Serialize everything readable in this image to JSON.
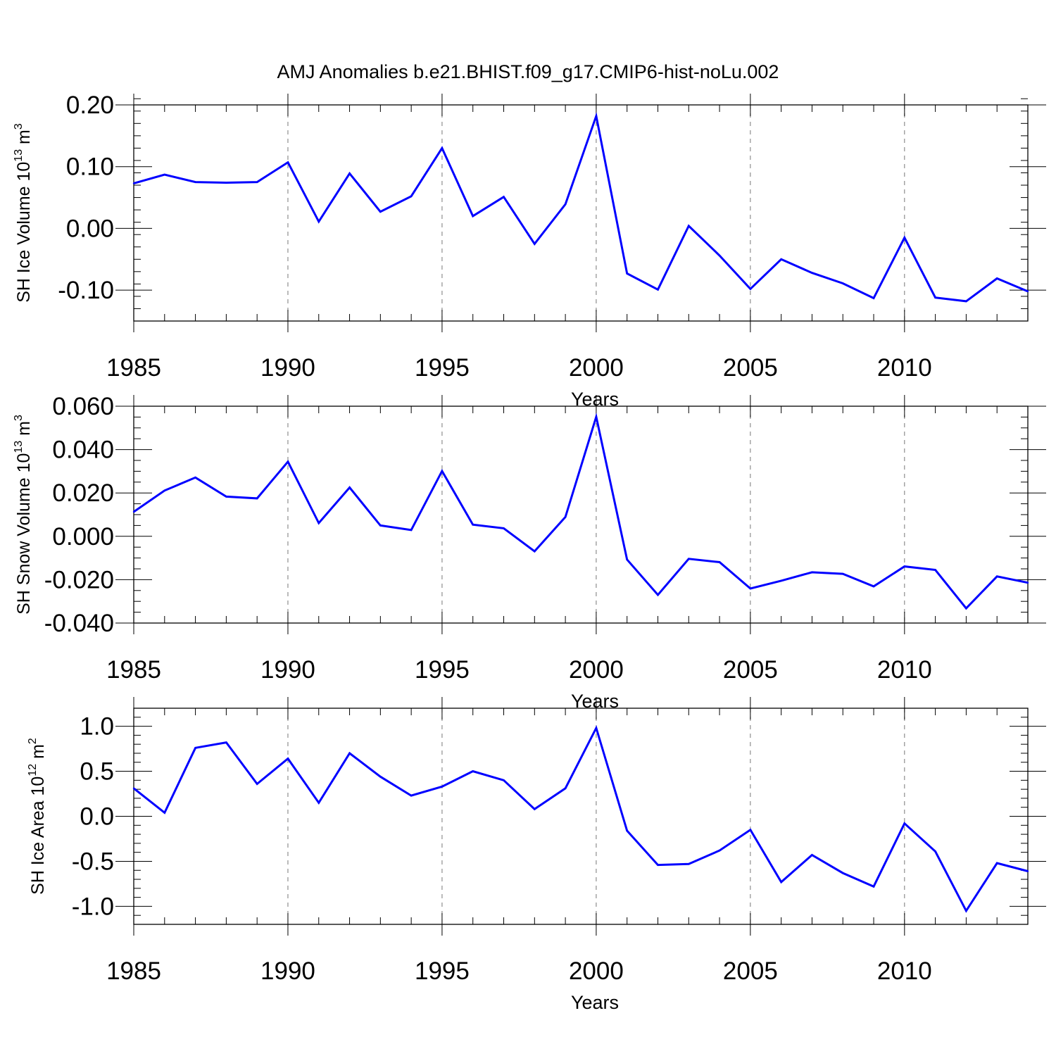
{
  "title": "AMJ Anomalies b.e21.BHIST.f09_g17.CMIP6-hist-noLu.002",
  "line_color": "#0000ff",
  "chart_data": [
    {
      "type": "line",
      "xlabel": "Years",
      "ylabel": {
        "main": "SH Ice Volume 10",
        "exp": "13",
        "unit": " m",
        "unit_exp": "3"
      },
      "xlim": [
        1985,
        2014
      ],
      "ylim": [
        -0.15,
        0.2
      ],
      "xticks": [
        1985,
        1990,
        1995,
        2000,
        2005,
        2010
      ],
      "xtick_labels": [
        "1985",
        "1990",
        "1995",
        "2000",
        "2005",
        "2010"
      ],
      "yticks": [
        0.2,
        0.1,
        0.0,
        -0.1
      ],
      "ytick_labels": [
        "0.20",
        "0.10",
        "0.00",
        "-0.10"
      ],
      "y_minor_step": 0.02,
      "x": [
        1985,
        1986,
        1987,
        1988,
        1989,
        1990,
        1991,
        1992,
        1993,
        1994,
        1995,
        1996,
        1997,
        1998,
        1999,
        2000,
        2001,
        2002,
        2003,
        2004,
        2005,
        2006,
        2007,
        2008,
        2009,
        2010,
        2011,
        2012,
        2013,
        2014
      ],
      "series": [
        {
          "values": [
            0.073,
            0.087,
            0.075,
            0.074,
            0.075,
            0.107,
            0.011,
            0.089,
            0.027,
            0.052,
            0.13,
            0.02,
            0.051,
            -0.025,
            0.039,
            0.182,
            -0.073,
            -0.099,
            0.004,
            -0.044,
            -0.098,
            -0.05,
            -0.072,
            -0.089,
            -0.113,
            -0.015,
            -0.112,
            -0.118,
            -0.081,
            -0.102
          ]
        }
      ]
    },
    {
      "type": "line",
      "xlabel": "Years",
      "ylabel": {
        "main": "SH Snow Volume 10",
        "exp": "13",
        "unit": " m",
        "unit_exp": "3"
      },
      "xlim": [
        1985,
        2014
      ],
      "ylim": [
        -0.04,
        0.06
      ],
      "xticks": [
        1985,
        1990,
        1995,
        2000,
        2005,
        2010
      ],
      "xtick_labels": [
        "1985",
        "1990",
        "1995",
        "2000",
        "2005",
        "2010"
      ],
      "yticks": [
        0.06,
        0.04,
        0.02,
        0.0,
        -0.02,
        -0.04
      ],
      "ytick_labels": [
        "0.060",
        "0.040",
        "0.020",
        "0.000",
        "-0.020",
        "-0.040"
      ],
      "y_minor_step": 0.005,
      "x": [
        1985,
        1986,
        1987,
        1988,
        1989,
        1990,
        1991,
        1992,
        1993,
        1994,
        1995,
        1996,
        1997,
        1998,
        1999,
        2000,
        2001,
        2002,
        2003,
        2004,
        2005,
        2006,
        2007,
        2008,
        2009,
        2010,
        2011,
        2012,
        2013,
        2014
      ],
      "series": [
        {
          "values": [
            0.0113,
            0.0211,
            0.0271,
            0.0183,
            0.0175,
            0.0344,
            0.0061,
            0.0225,
            0.005,
            0.0029,
            0.0301,
            0.0054,
            0.0037,
            -0.0069,
            0.0089,
            0.0551,
            -0.0107,
            -0.027,
            -0.0104,
            -0.0119,
            -0.0241,
            -0.0205,
            -0.0166,
            -0.0173,
            -0.0231,
            -0.0139,
            -0.0155,
            -0.0332,
            -0.0185,
            -0.0214
          ]
        }
      ]
    },
    {
      "type": "line",
      "xlabel": "Years",
      "ylabel": {
        "main": "SH Ice Area 10",
        "exp": "12",
        "unit": " m",
        "unit_exp": "2"
      },
      "xlim": [
        1985,
        2014
      ],
      "ylim": [
        -1.2,
        1.2
      ],
      "xticks": [
        1985,
        1990,
        1995,
        2000,
        2005,
        2010
      ],
      "xtick_labels": [
        "1985",
        "1990",
        "1995",
        "2000",
        "2005",
        "2010"
      ],
      "yticks": [
        1.0,
        0.5,
        0.0,
        -0.5,
        -1.0
      ],
      "ytick_labels": [
        "1.0",
        "0.5",
        "0.0",
        "-0.5",
        "-1.0"
      ],
      "y_minor_step": 0.1,
      "x": [
        1985,
        1986,
        1987,
        1988,
        1989,
        1990,
        1991,
        1992,
        1993,
        1994,
        1995,
        1996,
        1997,
        1998,
        1999,
        2000,
        2001,
        2002,
        2003,
        2004,
        2005,
        2006,
        2007,
        2008,
        2009,
        2010,
        2011,
        2012,
        2013,
        2014
      ],
      "series": [
        {
          "values": [
            0.31,
            0.04,
            0.76,
            0.82,
            0.36,
            0.64,
            0.15,
            0.7,
            0.44,
            0.23,
            0.33,
            0.5,
            0.4,
            0.08,
            0.31,
            0.98,
            -0.16,
            -0.54,
            -0.53,
            -0.38,
            -0.15,
            -0.73,
            -0.43,
            -0.63,
            -0.78,
            -0.08,
            -0.39,
            -1.05,
            -0.52,
            -0.61
          ]
        }
      ]
    }
  ]
}
